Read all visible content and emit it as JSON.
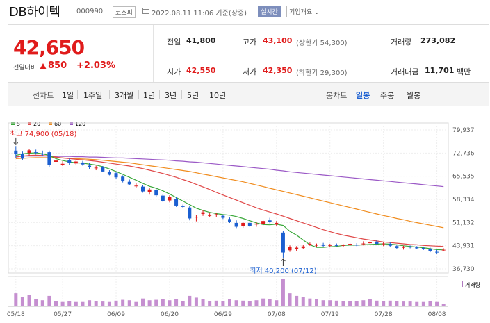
{
  "header": {
    "title": "DB하이텍",
    "code": "000990",
    "market": "코스피",
    "datetime": "2022.08.11 11:06 기준(장중)",
    "realtime": "실시간",
    "company_info": "기업개요 ⌄"
  },
  "price": {
    "current": "42,650",
    "change_label": "전일대비",
    "change": "850",
    "change_pct": "+2.03%",
    "prev_close_label": "전일",
    "prev_close": "41,800",
    "high_label": "고가",
    "high": "43,100",
    "upper_limit": "(상한가 54,300)",
    "volume_label": "거래량",
    "volume": "273,082",
    "open_label": "시가",
    "open": "42,550",
    "low_label": "저가",
    "low": "42,350",
    "lower_limit": "(하한가 29,300)",
    "amount_label": "거래대금",
    "amount": "11,701",
    "amount_unit": "백만",
    "up_color": "#e01b1b"
  },
  "period_bar": {
    "label": "선차트",
    "items": [
      "1일",
      "1주일",
      "3개월",
      "1년",
      "3년",
      "5년",
      "10년"
    ],
    "candle_label": "봉차트",
    "candle_items": [
      "일봉",
      "주봉",
      "월봉"
    ],
    "active": "일봉"
  },
  "chart_data": {
    "type": "candlestick",
    "legend": [
      {
        "name": "5",
        "color": "#3aa83a"
      },
      {
        "name": "20",
        "color": "#e04848"
      },
      {
        "name": "60",
        "color": "#f08c1e"
      },
      {
        "name": "120",
        "color": "#9b59c6"
      }
    ],
    "y_ticks": [
      79937,
      72736,
      65535,
      58334,
      51132,
      43931,
      36730
    ],
    "y_tick_labels": [
      "79,937",
      "72,736",
      "65,535",
      "58,334",
      "51,132",
      "43,931",
      "36,730"
    ],
    "ylim": [
      36730,
      79937
    ],
    "x_labels": [
      "05/18",
      "05/27",
      "06/09",
      "06/20",
      "06/29",
      "07/08",
      "07/19",
      "07/28",
      "08/08"
    ],
    "x_label_index": [
      0,
      7,
      15,
      23,
      31,
      39,
      47,
      55,
      63
    ],
    "high_annotation": "최고 74,900 (05/18)",
    "low_annotation": "최저 40,200 (07/12)",
    "volume_label": "거래량",
    "candles": [
      [
        0,
        73500,
        74900,
        71300,
        72500
      ],
      [
        1,
        72500,
        73200,
        70500,
        71000
      ],
      [
        2,
        72800,
        74000,
        72000,
        73600
      ],
      [
        3,
        73000,
        73800,
        72300,
        72900
      ],
      [
        4,
        72500,
        73500,
        71800,
        72300
      ],
      [
        5,
        73000,
        73500,
        68500,
        69000
      ],
      [
        6,
        70000,
        71000,
        69400,
        70400
      ],
      [
        7,
        69000,
        70200,
        68700,
        69400
      ],
      [
        8,
        70500,
        71000,
        69000,
        69600
      ],
      [
        9,
        69500,
        70500,
        68900,
        70100
      ],
      [
        10,
        69800,
        70300,
        68800,
        69200
      ],
      [
        11,
        68800,
        69600,
        67800,
        68400
      ],
      [
        12,
        68000,
        68800,
        67400,
        68200
      ],
      [
        13,
        68400,
        68700,
        66800,
        67000
      ],
      [
        14,
        66800,
        67400,
        65800,
        66000
      ],
      [
        15,
        66500,
        66900,
        64800,
        65200
      ],
      [
        16,
        65400,
        65800,
        63600,
        64000
      ],
      [
        17,
        63800,
        64500,
        62700,
        63000
      ],
      [
        18,
        62500,
        63400,
        62000,
        62600
      ],
      [
        19,
        62300,
        62800,
        60400,
        60800
      ],
      [
        20,
        60500,
        62000,
        59800,
        61400
      ],
      [
        21,
        61200,
        61700,
        59200,
        59600
      ],
      [
        22,
        59500,
        60000,
        57500,
        57900
      ],
      [
        23,
        58000,
        59600,
        57400,
        59000
      ],
      [
        24,
        58500,
        59000,
        56000,
        56400
      ],
      [
        25,
        56200,
        56700,
        55600,
        56000
      ],
      [
        26,
        55800,
        56200,
        51800,
        52400
      ],
      [
        27,
        52800,
        53400,
        51500,
        52900
      ],
      [
        28,
        53800,
        55000,
        53200,
        54300
      ],
      [
        29,
        53300,
        54000,
        52800,
        53400
      ],
      [
        30,
        53500,
        54200,
        52900,
        53700
      ],
      [
        31,
        53200,
        53600,
        52200,
        52600
      ],
      [
        32,
        52200,
        52700,
        51000,
        51400
      ],
      [
        33,
        51000,
        51800,
        49400,
        49800
      ],
      [
        34,
        50000,
        51400,
        49500,
        51000
      ],
      [
        35,
        51000,
        51600,
        49700,
        50100
      ],
      [
        36,
        50500,
        51200,
        49800,
        50800
      ],
      [
        37,
        50600,
        52000,
        50200,
        51600
      ],
      [
        38,
        51800,
        52600,
        50900,
        51300
      ],
      [
        39,
        50500,
        51600,
        49900,
        51000
      ],
      [
        40,
        48000,
        48600,
        40200,
        41800
      ],
      [
        41,
        42500,
        44000,
        42000,
        43600
      ],
      [
        42,
        42800,
        43800,
        42300,
        43300
      ],
      [
        43,
        43200,
        44100,
        42800,
        43700
      ],
      [
        44,
        44200,
        44900,
        43900,
        44500
      ],
      [
        45,
        44000,
        44600,
        43500,
        44200
      ],
      [
        46,
        44300,
        44800,
        43600,
        43900
      ],
      [
        47,
        43900,
        44500,
        43400,
        44300
      ],
      [
        48,
        44100,
        44600,
        43700,
        44000
      ],
      [
        49,
        43900,
        44400,
        43600,
        44200
      ],
      [
        50,
        44300,
        44800,
        43900,
        44500
      ],
      [
        51,
        44200,
        44700,
        43800,
        44000
      ],
      [
        52,
        44400,
        45300,
        44000,
        44600
      ],
      [
        53,
        44700,
        45500,
        44100,
        45100
      ],
      [
        54,
        45200,
        45600,
        44300,
        44500
      ],
      [
        55,
        44400,
        45000,
        43800,
        44600
      ],
      [
        56,
        44500,
        44900,
        43500,
        43900
      ],
      [
        57,
        43800,
        44300,
        43000,
        43200
      ],
      [
        58,
        43300,
        43900,
        42700,
        43500
      ],
      [
        59,
        43600,
        44000,
        43100,
        43500
      ],
      [
        60,
        43400,
        43800,
        42800,
        43100
      ],
      [
        61,
        43200,
        43600,
        42600,
        43000
      ],
      [
        62,
        42900,
        43300,
        41900,
        42200
      ],
      [
        63,
        42000,
        42600,
        41500,
        41800
      ],
      [
        64,
        42550,
        43100,
        42350,
        42650
      ]
    ],
    "volumes": [
      30,
      22,
      26,
      16,
      14,
      24,
      12,
      10,
      12,
      10,
      10,
      14,
      12,
      11,
      10,
      13,
      15,
      14,
      10,
      18,
      14,
      15,
      16,
      14,
      16,
      12,
      24,
      20,
      16,
      12,
      13,
      12,
      16,
      14,
      13,
      12,
      14,
      18,
      16,
      14,
      62,
      30,
      24,
      22,
      18,
      16,
      14,
      14,
      13,
      12,
      12,
      12,
      14,
      16,
      13,
      12,
      13,
      12,
      11,
      11,
      10,
      10,
      12,
      10,
      5
    ],
    "ma5": [
      72000,
      72500,
      72700,
      72800,
      72500,
      72000,
      71000,
      70400,
      70000,
      69700,
      69600,
      69300,
      69000,
      68500,
      67800,
      67000,
      66100,
      65200,
      64300,
      63300,
      62400,
      61800,
      61000,
      60000,
      58900,
      57800,
      56700,
      55600,
      54900,
      54300,
      53900,
      53600,
      53400,
      53000,
      52400,
      51700,
      51000,
      50500,
      50400,
      50600,
      50200,
      48400,
      47200,
      45700,
      44200,
      43400,
      43400,
      43600,
      43700,
      44000,
      44100,
      44100,
      44200,
      44300,
      44400,
      44500,
      44400,
      44200,
      43900,
      43700,
      43500,
      43300,
      43000,
      42700,
      42600
    ],
    "ma20": [
      71500,
      71800,
      72000,
      72100,
      72000,
      71800,
      71500,
      71200,
      71000,
      70800,
      70600,
      70400,
      70200,
      69900,
      69600,
      69300,
      69000,
      68700,
      68300,
      67900,
      67400,
      66900,
      66400,
      65800,
      65200,
      64500,
      63800,
      63000,
      62200,
      61400,
      60500,
      59700,
      58900,
      58100,
      57300,
      56500,
      55700,
      55000,
      54400,
      53800,
      53100,
      52400,
      51700,
      51000,
      50300,
      49600,
      48900,
      48300,
      47700,
      47200,
      46800,
      46400,
      46000,
      45700,
      45400,
      45100,
      44900,
      44700,
      44500,
      44300,
      44200,
      44000,
      43900,
      43800,
      43700
    ],
    "ma60": [
      71000,
      71100,
      71200,
      71300,
      71300,
      71300,
      71300,
      71200,
      71100,
      71000,
      70900,
      70800,
      70700,
      70500,
      70300,
      70100,
      69900,
      69700,
      69400,
      69100,
      68800,
      68500,
      68200,
      67900,
      67600,
      67300,
      67000,
      66600,
      66200,
      65800,
      65400,
      65000,
      64600,
      64200,
      63800,
      63300,
      62800,
      62300,
      61800,
      61300,
      60800,
      60300,
      59800,
      59300,
      58800,
      58300,
      57800,
      57300,
      56800,
      56300,
      55800,
      55300,
      54800,
      54300,
      53800,
      53300,
      52900,
      52400,
      52000,
      51500,
      51100,
      50700,
      50300,
      49900,
      49500
    ],
    "ma120": [
      71800,
      71800,
      71800,
      71800,
      71800,
      71800,
      71700,
      71700,
      71700,
      71600,
      71600,
      71500,
      71500,
      71400,
      71300,
      71200,
      71200,
      71100,
      71000,
      70900,
      70800,
      70700,
      70600,
      70500,
      70300,
      70200,
      70000,
      69900,
      69700,
      69500,
      69300,
      69100,
      68900,
      68700,
      68500,
      68300,
      68100,
      67900,
      67700,
      67400,
      67200,
      66900,
      66700,
      66500,
      66300,
      66100,
      65900,
      65700,
      65500,
      65300,
      65100,
      64900,
      64700,
      64500,
      64300,
      64100,
      63900,
      63700,
      63500,
      63300,
      63100,
      62900,
      62700,
      62500,
      62300
    ]
  }
}
